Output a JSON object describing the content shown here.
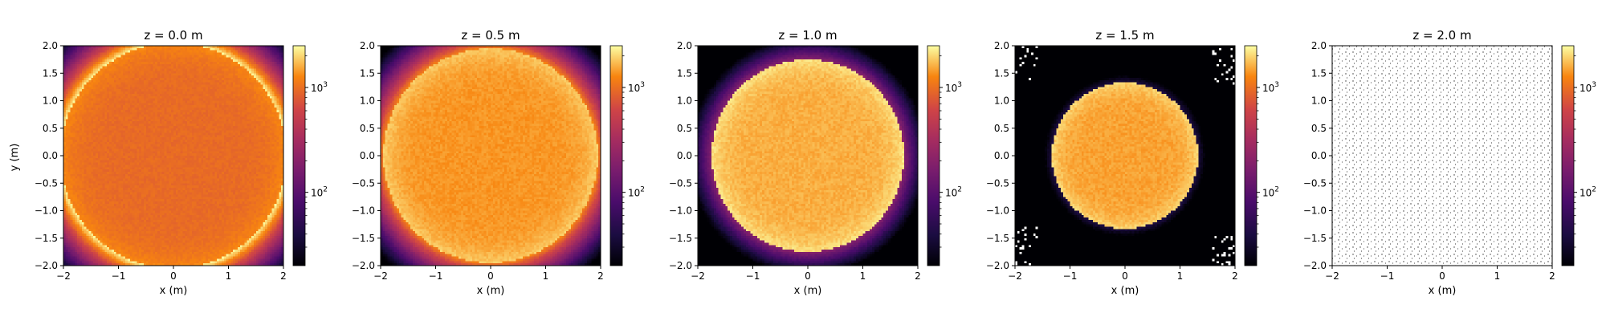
{
  "figure": {
    "ylabel": "y (m)"
  },
  "colorscale": {
    "cmap": "inferno",
    "type": "log",
    "min": 20,
    "max": 2500,
    "tick_labels": [
      "10",
      "3",
      "10",
      "2"
    ]
  },
  "chart_data": [
    {
      "type": "heatmap",
      "title": "z = 0.0 m",
      "xlabel": "x (m)",
      "xlim": [
        -2,
        2
      ],
      "ylim": [
        -2,
        2
      ],
      "xticks": [
        "−2",
        "−1",
        "0",
        "1",
        "2"
      ],
      "yticks": [
        "2.0",
        "1.5",
        "1.0",
        "0.5",
        "0.0",
        "−0.5",
        "−1.0",
        "−1.5",
        "−2.0"
      ],
      "disk_radius": 2.05,
      "center_value": 950,
      "edge_value": 60,
      "noise": 0.08
    },
    {
      "type": "heatmap",
      "title": "z = 0.5 m",
      "xlabel": "x (m)",
      "xlim": [
        -2,
        2
      ],
      "ylim": [
        -2,
        2
      ],
      "xticks": [
        "−2",
        "−1",
        "0",
        "1",
        "2"
      ],
      "yticks": [
        "2.0",
        "1.5",
        "1.0",
        "0.5",
        "0.0",
        "−0.5",
        "−1.0",
        "−1.5",
        "−2.0"
      ],
      "disk_radius": 1.95,
      "center_value": 1400,
      "edge_value": 30,
      "noise": 0.08
    },
    {
      "type": "heatmap",
      "title": "z = 1.0 m",
      "xlabel": "x (m)",
      "xlim": [
        -2,
        2
      ],
      "ylim": [
        -2,
        2
      ],
      "xticks": [
        "−2",
        "−1",
        "0",
        "1",
        "2"
      ],
      "yticks": [
        "2.0",
        "1.5",
        "1.0",
        "0.5",
        "0.0",
        "−0.5",
        "−1.0",
        "−1.5",
        "−2.0"
      ],
      "disk_radius": 1.75,
      "center_value": 1600,
      "edge_value": 5,
      "noise": 0.09
    },
    {
      "type": "heatmap",
      "title": "z = 1.5 m",
      "xlabel": "x (m)",
      "xlim": [
        -2,
        2
      ],
      "ylim": [
        -2,
        2
      ],
      "xticks": [
        "−2",
        "−1",
        "0",
        "1",
        "2"
      ],
      "yticks": [
        "2.0",
        "1.5",
        "1.0",
        "0.5",
        "0.0",
        "−0.5",
        "−1.0",
        "−1.5",
        "−2.0"
      ],
      "disk_radius": 1.33,
      "center_value": 1500,
      "edge_value": 1,
      "noise": 0.09
    },
    {
      "type": "heatmap",
      "title": "z = 2.0 m",
      "xlabel": "x (m)",
      "xlim": [
        -2,
        2
      ],
      "ylim": [
        -2,
        2
      ],
      "xticks": [
        "−2",
        "−1",
        "0",
        "1",
        "2"
      ],
      "yticks": [
        "2.0",
        "1.5",
        "1.0",
        "0.5",
        "0.0",
        "−0.5",
        "−1.0",
        "−1.5",
        "−2.0"
      ],
      "empty": true
    }
  ]
}
